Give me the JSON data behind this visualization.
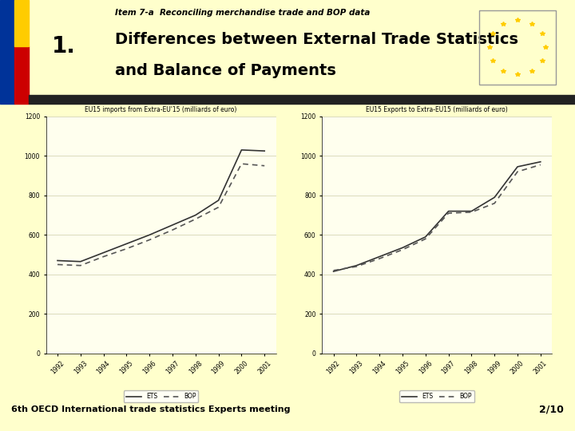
{
  "bg_color": "#ffffcc",
  "header_bg": "#ffffcc",
  "title_small": "Item 7-a  Reconciling merchandise trade and BOP data",
  "title_large_line1": "Differences between External Trade Statistics",
  "title_large_line2": "and Balance of Payments",
  "footer_text": "6th OECD International trade statistics Experts meeting",
  "footer_right": "2/10",
  "left_bar_colors": [
    "#003399",
    "#cc0000",
    "#ffcc00"
  ],
  "years": [
    1992,
    1993,
    1994,
    1995,
    1996,
    1997,
    1998,
    1999,
    2000,
    2001
  ],
  "imports_ets": [
    470,
    465,
    510,
    555,
    600,
    650,
    700,
    775,
    1030,
    1025
  ],
  "imports_bop": [
    450,
    445,
    490,
    530,
    575,
    625,
    680,
    740,
    960,
    950
  ],
  "exports_ets": [
    415,
    445,
    490,
    535,
    590,
    720,
    720,
    790,
    945,
    970
  ],
  "exports_bop": [
    420,
    440,
    480,
    525,
    580,
    710,
    715,
    760,
    920,
    955
  ],
  "chart1_title": "EU15 imports from Extra-EU'15 (milliards of euro)",
  "chart2_title": "EU15 Exports to Extra-EU15 (milliards of euro)",
  "legend_ets": "ETS",
  "legend_bop": "BOP",
  "ylim_imports": [
    0,
    1200
  ],
  "ylim_exports": [
    0,
    1200
  ],
  "yticks_imports": [
    0,
    200,
    400,
    600,
    800,
    1000,
    1200
  ],
  "yticks_exports": [
    0,
    200,
    400,
    600,
    800,
    1000,
    1200
  ],
  "chart_bg": "#ffffee",
  "grid_color": "#ccccaa",
  "line_color_solid": "#333333",
  "line_color_dotted": "#555555"
}
